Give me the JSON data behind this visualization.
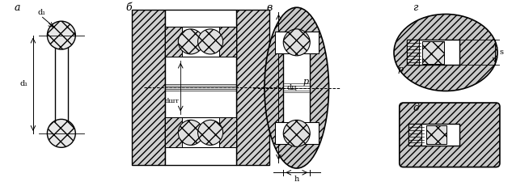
{
  "bg_color": "#ffffff",
  "line_color": "#000000",
  "hatch_color": "#000000",
  "labels": {
    "a": "а",
    "b": "б",
    "v": "в",
    "g": "г",
    "d": "д",
    "d1": "d₁",
    "d2": "d₁",
    "d_sht": "dшт",
    "d_u": "dц",
    "p": "p",
    "h": "h",
    "s": "s",
    "p2": "p"
  }
}
